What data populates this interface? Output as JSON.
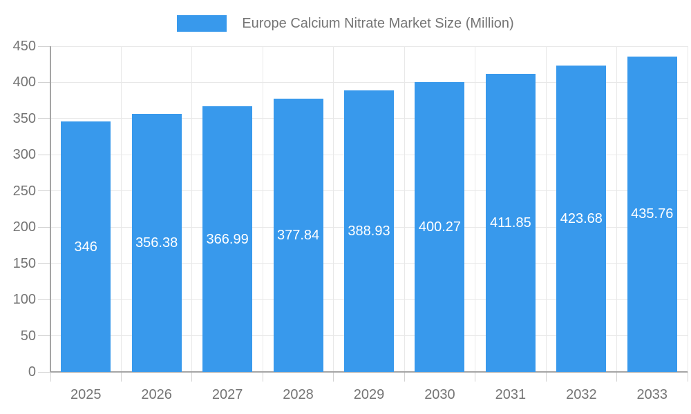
{
  "legend": {
    "label": "Europe Calcium Nitrate Market Size (Million)"
  },
  "chart_data": {
    "type": "bar",
    "title": "Europe Calcium Nitrate Market Size (Million)",
    "categories": [
      "2025",
      "2026",
      "2027",
      "2028",
      "2029",
      "2030",
      "2031",
      "2032",
      "2033"
    ],
    "values": [
      346,
      356.38,
      366.99,
      377.84,
      388.93,
      400.27,
      411.85,
      423.68,
      435.76
    ],
    "value_labels": [
      "346",
      "356.38",
      "366.99",
      "377.84",
      "388.93",
      "400.27",
      "411.85",
      "423.68",
      "435.76"
    ],
    "xlabel": "",
    "ylabel": "",
    "ylim": [
      0,
      450
    ],
    "ytick_step": 50,
    "yticks": [
      0,
      50,
      100,
      150,
      200,
      250,
      300,
      350,
      400,
      450
    ],
    "grid": true,
    "legend_position": "top-center",
    "value_label_position": "inside-center",
    "colors": {
      "bar": "#3899EC",
      "axis_text": "#757575",
      "legend_text": "#757575",
      "grid": "#e8e8e8",
      "axis_line": "#a5a5a5",
      "tick": "#d2d2d2",
      "value_text": "#ffffff",
      "background": "#ffffff"
    }
  }
}
